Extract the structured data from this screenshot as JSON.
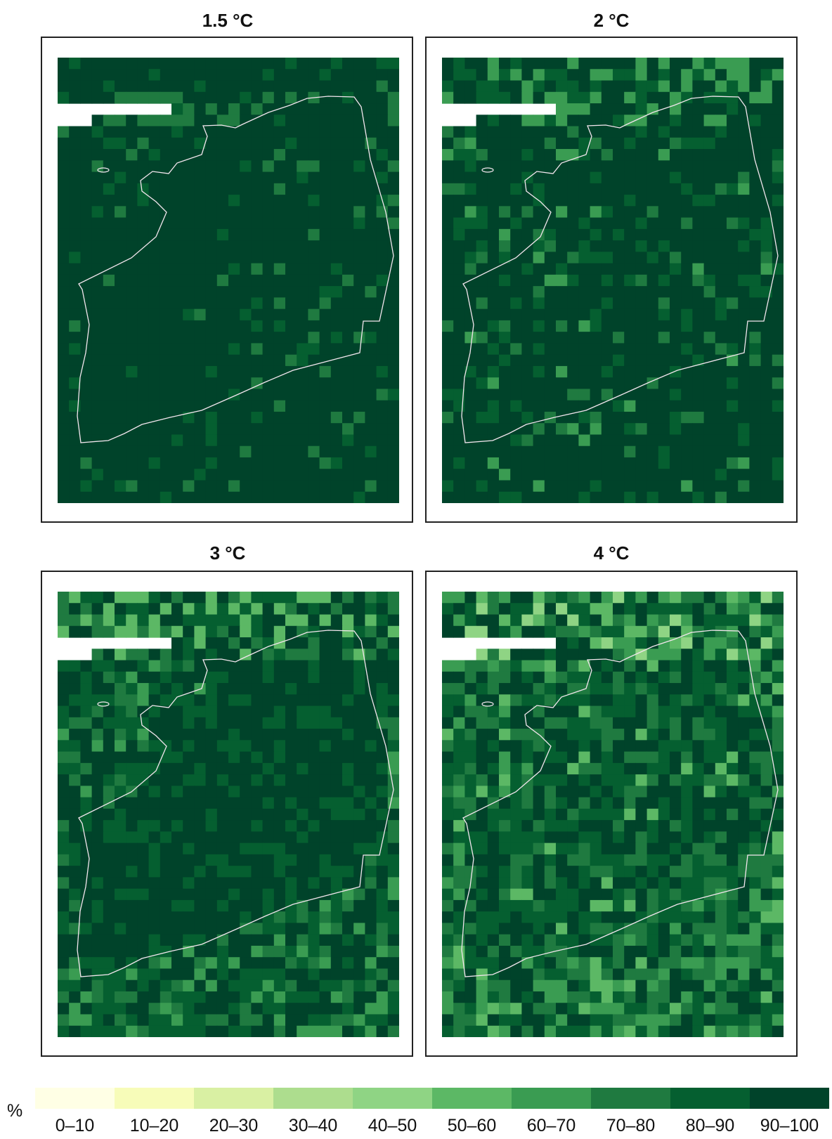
{
  "panels": [
    {
      "title": "1.5 °C",
      "level": 0
    },
    {
      "title": "2 °C",
      "level": 1
    },
    {
      "title": "3 °C",
      "level": 2
    },
    {
      "title": "4 °C",
      "level": 3
    }
  ],
  "legend": {
    "unit": "%",
    "classes": [
      {
        "label": "0–10",
        "color": "#ffffe5"
      },
      {
        "label": "10–20",
        "color": "#f7fcb9"
      },
      {
        "label": "20–30",
        "color": "#d9f0a3"
      },
      {
        "label": "30–40",
        "color": "#addd8e"
      },
      {
        "label": "40–50",
        "color": "#8fd484"
      },
      {
        "label": "50–60",
        "color": "#5cb865"
      },
      {
        "label": "60–70",
        "color": "#3a9c52"
      },
      {
        "label": "70–80",
        "color": "#1f7a40"
      },
      {
        "label": "80–90",
        "color": "#055f30"
      },
      {
        "label": "90–100",
        "color": "#00432a"
      }
    ]
  }
}
